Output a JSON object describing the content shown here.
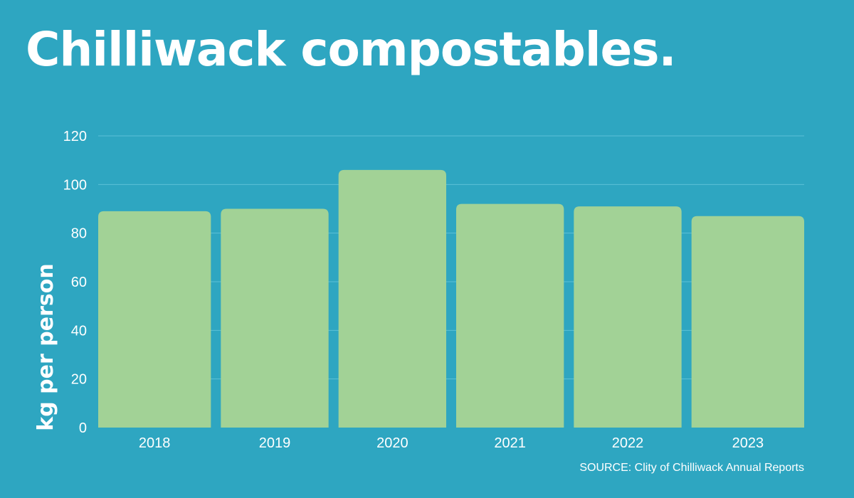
{
  "title": "Chilliwack compostables.",
  "source": "SOURCE: Clity of Chilliwack Annual Reports",
  "colors": {
    "background": "#2ea6c1",
    "bar": "#a2d296",
    "grid": "#5cc0d6",
    "text": "#ffffff"
  },
  "chart_data": {
    "type": "bar",
    "categories": [
      "2018",
      "2019",
      "2020",
      "2021",
      "2022",
      "2023"
    ],
    "values": [
      89,
      90,
      106,
      92,
      91,
      87
    ],
    "ylabel": "kg per person",
    "xlabel": "",
    "ylim": [
      0,
      120
    ],
    "yticks": [
      0,
      20,
      40,
      60,
      80,
      100,
      120
    ],
    "grid": true,
    "legend": "none"
  }
}
